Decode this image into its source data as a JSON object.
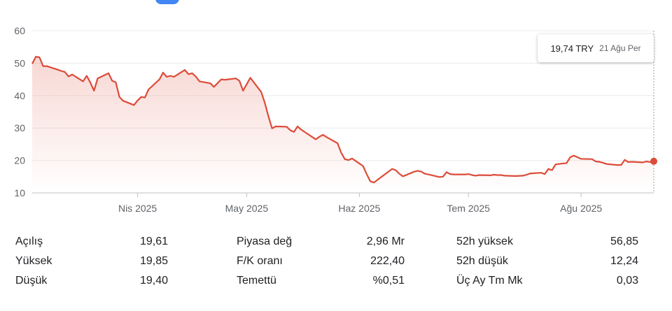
{
  "chart_data": {
    "type": "area",
    "series": [
      {
        "x": [
          "2025-03-03",
          "2025-03-04",
          "2025-03-05",
          "2025-03-06",
          "2025-03-07",
          "2025-03-10",
          "2025-03-11",
          "2025-03-12",
          "2025-03-13",
          "2025-03-14",
          "2025-03-17",
          "2025-03-18",
          "2025-03-19",
          "2025-03-20",
          "2025-03-21",
          "2025-03-24",
          "2025-03-25",
          "2025-03-26",
          "2025-03-27",
          "2025-03-28",
          "2025-03-31",
          "2025-04-01",
          "2025-04-02",
          "2025-04-03",
          "2025-04-04",
          "2025-04-07",
          "2025-04-08",
          "2025-04-09",
          "2025-04-10",
          "2025-04-11",
          "2025-04-14",
          "2025-04-15",
          "2025-04-16",
          "2025-04-17",
          "2025-04-18",
          "2025-04-21",
          "2025-04-22",
          "2025-04-24",
          "2025-04-25",
          "2025-04-28",
          "2025-04-29",
          "2025-04-30",
          "2025-05-02",
          "2025-05-05",
          "2025-05-06",
          "2025-05-07",
          "2025-05-08",
          "2025-05-09",
          "2025-05-12",
          "2025-05-13",
          "2025-05-14",
          "2025-05-15",
          "2025-05-16",
          "2025-05-20",
          "2025-05-21",
          "2025-05-22",
          "2025-05-23",
          "2025-05-26",
          "2025-05-27",
          "2025-05-28",
          "2025-05-29",
          "2025-05-30",
          "2025-06-02",
          "2025-06-03",
          "2025-06-04",
          "2025-06-05",
          "2025-06-10",
          "2025-06-11",
          "2025-06-12",
          "2025-06-13",
          "2025-06-16",
          "2025-06-17",
          "2025-06-18",
          "2025-06-19",
          "2025-06-20",
          "2025-06-23",
          "2025-06-24",
          "2025-06-25",
          "2025-06-26",
          "2025-06-27",
          "2025-06-30",
          "2025-07-01",
          "2025-07-02",
          "2025-07-03",
          "2025-07-04",
          "2025-07-07",
          "2025-07-08",
          "2025-07-09",
          "2025-07-10",
          "2025-07-11",
          "2025-07-14",
          "2025-07-16",
          "2025-07-17",
          "2025-07-18",
          "2025-07-21",
          "2025-07-22",
          "2025-07-23",
          "2025-07-24",
          "2025-07-25",
          "2025-07-28",
          "2025-07-29",
          "2025-07-30",
          "2025-07-31",
          "2025-08-01",
          "2025-08-04",
          "2025-08-05",
          "2025-08-06",
          "2025-08-07",
          "2025-08-08",
          "2025-08-11",
          "2025-08-12",
          "2025-08-13",
          "2025-08-14",
          "2025-08-15",
          "2025-08-18",
          "2025-08-19",
          "2025-08-20",
          "2025-08-21"
        ],
        "values": [
          49.8,
          52,
          51.8,
          49.1,
          49.1,
          48,
          47.6,
          47.3,
          45.9,
          46.5,
          44.4,
          46.1,
          44,
          41.5,
          45.3,
          46.9,
          44.6,
          44.1,
          39.6,
          38.4,
          37.1,
          38.5,
          39.6,
          39.4,
          41.9,
          45,
          47.1,
          45.8,
          46.1,
          45.8,
          47.9,
          46.6,
          46.9,
          45.9,
          44.4,
          43.8,
          42.7,
          45,
          44.9,
          45.3,
          44.6,
          41.5,
          45.5,
          41.1,
          37.7,
          33.6,
          29.9,
          30.5,
          30.4,
          29.3,
          28.8,
          30.5,
          29.5,
          26.5,
          27.3,
          27.9,
          27.2,
          25.3,
          22.4,
          20.4,
          20.1,
          20.6,
          18.3,
          15.8,
          13.6,
          13.2,
          17.4,
          17,
          15.9,
          15.1,
          16.5,
          16.8,
          16.6,
          15.9,
          15.7,
          14.9,
          15,
          16.4,
          15.8,
          15.7,
          15.7,
          15.8,
          15.5,
          15.3,
          15.5,
          15.4,
          15.6,
          15.5,
          15.5,
          15.3,
          15.2,
          15.3,
          15.6,
          16,
          16.2,
          15.8,
          17.4,
          17,
          18.8,
          19.2,
          21,
          21.5,
          21,
          20.5,
          20.4,
          19.7,
          19.6,
          19.3,
          18.9,
          18.6,
          18.6,
          20.2,
          19.5,
          19.6,
          19.4,
          19.7,
          19.5,
          19.74
        ]
      }
    ],
    "y_ticks": [
      "60",
      "50",
      "40",
      "30",
      "20",
      "10"
    ],
    "ylim": [
      10,
      60
    ],
    "x_tick_labels": [
      "Nis 2025",
      "May 2025",
      "Haz 2025",
      "Tem 2025",
      "Ağu 2025"
    ],
    "x_tick_dates": [
      "2025-04-01",
      "2025-05-01",
      "2025-06-01",
      "2025-07-01",
      "2025-08-01"
    ],
    "grid": true,
    "line_color": "#dd4b39",
    "fill_color": "#dd4b39",
    "axis_color": "#dadce0"
  },
  "tooltip": {
    "price": "19,74 TRY",
    "date": "21 Ağu Per"
  },
  "stats": [
    [
      {
        "label": "Açılış",
        "value": "19,61"
      },
      {
        "label": "Yüksek",
        "value": "19,85"
      },
      {
        "label": "Düşük",
        "value": "19,40"
      }
    ],
    [
      {
        "label": "Piyasa değ",
        "value": "2,96 Mr"
      },
      {
        "label": "F/K oranı",
        "value": "222,40"
      },
      {
        "label": "Temettü",
        "value": "%0,51"
      }
    ],
    [
      {
        "label": "52h yüksek",
        "value": "56,85"
      },
      {
        "label": "52h düşük",
        "value": "12,24"
      },
      {
        "label": "Üç Ay Tm Mk",
        "value": "0,03"
      }
    ]
  ]
}
